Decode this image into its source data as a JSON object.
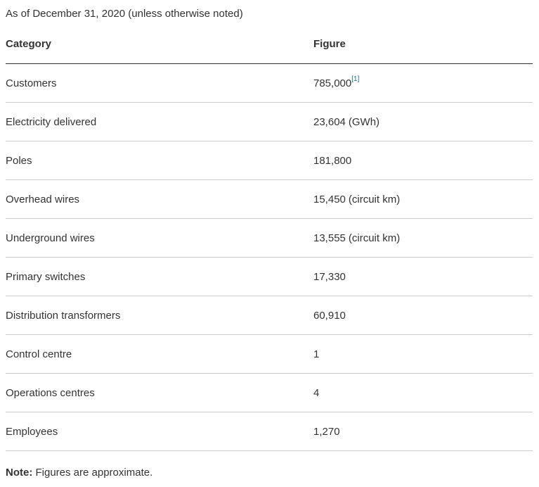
{
  "caption": "As of December 31, 2020 (unless otherwise noted)",
  "table": {
    "headers": {
      "category": "Category",
      "figure": "Figure"
    },
    "rows": [
      {
        "category": "Customers",
        "value": "785,000",
        "unit": "",
        "footnote": "[1]"
      },
      {
        "category": "Electricity delivered",
        "value": "23,604",
        "unit": "(GWh)",
        "footnote": ""
      },
      {
        "category": "Poles",
        "value": "181,800",
        "unit": "",
        "footnote": ""
      },
      {
        "category": "Overhead wires",
        "value": "15,450",
        "unit": "(circuit km)",
        "footnote": ""
      },
      {
        "category": "Underground wires",
        "value": "13,555",
        "unit": "(circuit km)",
        "footnote": ""
      },
      {
        "category": "Primary switches",
        "value": "17,330",
        "unit": "",
        "footnote": ""
      },
      {
        "category": "Distribution transformers",
        "value": "60,910",
        "unit": "",
        "footnote": ""
      },
      {
        "category": "Control centre",
        "value": "1",
        "unit": "",
        "footnote": ""
      },
      {
        "category": "Operations centres",
        "value": "4",
        "unit": "",
        "footnote": ""
      },
      {
        "category": "Employees",
        "value": "1,270",
        "unit": "",
        "footnote": ""
      }
    ]
  },
  "note": {
    "label": "Note:",
    "text": "Figures are approximate."
  },
  "colors": {
    "footnote_link": "#1a7a8a",
    "row_divider": "#cccccc",
    "header_divider": "#333333"
  }
}
